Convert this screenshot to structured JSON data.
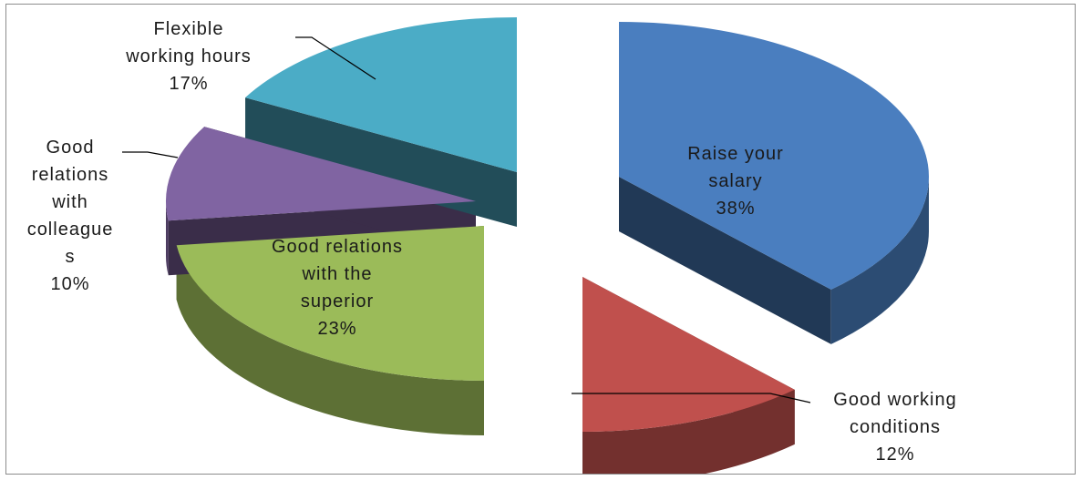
{
  "chart_data": {
    "type": "pie",
    "style": "exploded-3d",
    "title": "",
    "legend": "none",
    "slices": [
      {
        "name": "Raise your salary",
        "label_lines": [
          "Raise your",
          "salary"
        ],
        "percent_label": "38%",
        "value": 38,
        "color": "#4a7ebf"
      },
      {
        "name": "Good working conditions",
        "label_lines": [
          "Good working",
          "conditions"
        ],
        "percent_label": "12%",
        "value": 12,
        "color": "#c0504d"
      },
      {
        "name": "Good relations with the superior",
        "label_lines": [
          "Good relations",
          "with the",
          "superior"
        ],
        "percent_label": "23%",
        "value": 23,
        "color": "#9bbb59"
      },
      {
        "name": "Good relations with colleagues",
        "label_lines": [
          "Good",
          "relations",
          "with",
          "colleague",
          "s"
        ],
        "percent_label": "10%",
        "value": 10,
        "color": "#8064a2"
      },
      {
        "name": "Flexible working hours",
        "label_lines": [
          "Flexible",
          "working hours"
        ],
        "percent_label": "17%",
        "value": 17,
        "color": "#4bacc6"
      }
    ]
  }
}
